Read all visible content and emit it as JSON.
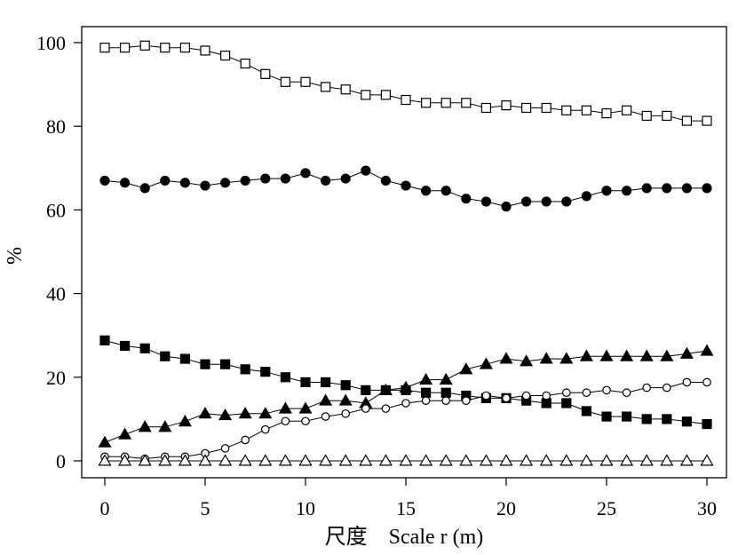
{
  "chart_data": {
    "type": "line",
    "title": "",
    "xlabel": "尺度　Scale r (m)",
    "ylabel": "%",
    "xlim": [
      0,
      30
    ],
    "ylim": [
      0,
      100
    ],
    "xticks": [
      0,
      5,
      10,
      15,
      20,
      25,
      30
    ],
    "yticks": [
      0,
      20,
      40,
      60,
      80,
      100
    ],
    "grid": false,
    "x": [
      0,
      1,
      2,
      3,
      4,
      5,
      6,
      7,
      8,
      9,
      10,
      11,
      12,
      13,
      14,
      15,
      16,
      17,
      18,
      19,
      20,
      21,
      22,
      23,
      24,
      25,
      26,
      27,
      28,
      29,
      30
    ],
    "series": [
      {
        "marker": "square-open",
        "values": [
          98.8,
          98.8,
          99.3,
          98.8,
          98.8,
          98.1,
          96.9,
          95.0,
          92.5,
          90.6,
          90.6,
          89.4,
          88.8,
          87.5,
          87.5,
          86.3,
          85.6,
          85.6,
          85.6,
          84.4,
          85.0,
          84.4,
          84.4,
          83.8,
          83.8,
          83.1,
          83.8,
          82.5,
          82.5,
          81.3,
          81.3
        ]
      },
      {
        "marker": "circle-filled",
        "values": [
          67.0,
          66.5,
          65.2,
          67.0,
          66.5,
          65.8,
          66.5,
          67.0,
          67.5,
          67.5,
          68.8,
          67.0,
          67.5,
          69.4,
          67.0,
          65.8,
          64.6,
          64.6,
          62.7,
          62.0,
          60.8,
          62.0,
          62.0,
          62.0,
          63.3,
          64.6,
          64.6,
          65.2,
          65.2,
          65.2,
          65.2
        ]
      },
      {
        "marker": "square-filled",
        "values": [
          28.8,
          27.5,
          26.9,
          25.0,
          24.4,
          23.1,
          23.1,
          21.9,
          21.3,
          20.0,
          18.8,
          18.8,
          18.1,
          16.9,
          16.9,
          16.9,
          16.3,
          16.3,
          15.6,
          15.0,
          15.0,
          14.4,
          13.8,
          13.8,
          11.9,
          10.6,
          10.6,
          10.0,
          10.0,
          9.4,
          8.8
        ]
      },
      {
        "marker": "triangle-filled",
        "values": [
          4.4,
          6.3,
          8.1,
          8.1,
          9.4,
          11.3,
          10.9,
          11.3,
          11.3,
          12.5,
          12.5,
          14.4,
          14.4,
          13.8,
          16.9,
          17.5,
          19.4,
          19.4,
          21.9,
          23.1,
          24.4,
          23.8,
          24.4,
          24.4,
          25.0,
          25.0,
          25.0,
          25.0,
          25.0,
          25.6,
          26.3
        ]
      },
      {
        "marker": "circle-open",
        "values": [
          1.0,
          1.0,
          0.5,
          1.0,
          1.0,
          1.8,
          3.0,
          5.0,
          7.5,
          9.5,
          9.5,
          10.6,
          11.3,
          12.5,
          12.5,
          13.8,
          14.4,
          14.4,
          14.4,
          15.6,
          15.0,
          15.6,
          15.6,
          16.3,
          16.3,
          16.9,
          16.3,
          17.5,
          17.5,
          18.8,
          18.8
        ]
      },
      {
        "marker": "triangle-open",
        "values": [
          0,
          0,
          0,
          0,
          0,
          0,
          0,
          0,
          0,
          0,
          0,
          0,
          0,
          0,
          0,
          0,
          0,
          0,
          0,
          0,
          0,
          0,
          0,
          0,
          0,
          0,
          0,
          0,
          0,
          0,
          0
        ]
      }
    ]
  }
}
